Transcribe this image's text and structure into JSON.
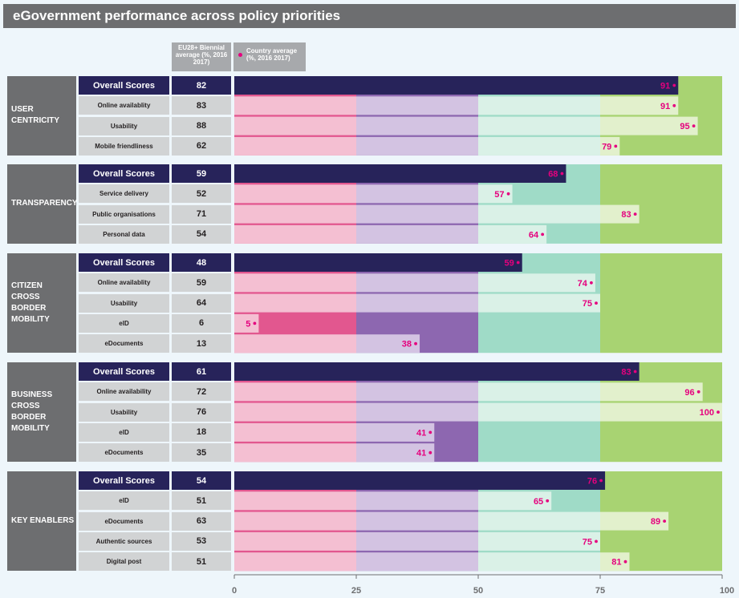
{
  "title": "eGovernment performance across policy priorities",
  "header": {
    "eu_label": "EU28+ Biennial average (%, 2016 2017)",
    "country_label": "Country average (%, 2016 2017)"
  },
  "colors": {
    "band_0_25": "#e2578f",
    "band_25_50": "#8d67b0",
    "band_50_75": "#9fdbc7",
    "band_75_100": "#a8d372",
    "overall_bar": "#27235a",
    "value_text": "#e5007e"
  },
  "chart_data": {
    "type": "bar",
    "orientation": "horizontal",
    "xlim": [
      0,
      100
    ],
    "x_ticks": [
      "0",
      "25",
      "50",
      "75",
      "100"
    ],
    "bands": [
      0,
      25,
      50,
      75,
      100
    ],
    "groups": [
      {
        "name": "USER\nCENTRICITY",
        "rows": [
          {
            "label": "Overall Scores",
            "eu": 82,
            "country": 91,
            "overall": true
          },
          {
            "label": "Online availablity",
            "eu": 83,
            "country": 91
          },
          {
            "label": "Usability",
            "eu": 88,
            "country": 95
          },
          {
            "label": "Mobile friendliness",
            "eu": 62,
            "country": 79
          }
        ]
      },
      {
        "name": "TRANSPARENCY",
        "rows": [
          {
            "label": "Overall Scores",
            "eu": 59,
            "country": 68,
            "overall": true
          },
          {
            "label": "Service delivery",
            "eu": 52,
            "country": 57
          },
          {
            "label": "Public organisations",
            "eu": 71,
            "country": 83
          },
          {
            "label": "Personal data",
            "eu": 54,
            "country": 64
          }
        ]
      },
      {
        "name": "CITIZEN\nCROSS\nBORDER\nMOBILITY",
        "rows": [
          {
            "label": "Overall Scores",
            "eu": 48,
            "country": 59,
            "overall": true
          },
          {
            "label": "Online availablity",
            "eu": 59,
            "country": 74
          },
          {
            "label": "Usability",
            "eu": 64,
            "country": 75
          },
          {
            "label": "eID",
            "eu": 6,
            "country": 5
          },
          {
            "label": "eDocuments",
            "eu": 13,
            "country": 38
          }
        ]
      },
      {
        "name": "BUSINESS\nCROSS\nBORDER\nMOBILITY",
        "rows": [
          {
            "label": "Overall Scores",
            "eu": 61,
            "country": 83,
            "overall": true
          },
          {
            "label": "Online availability",
            "eu": 72,
            "country": 96
          },
          {
            "label": "Usability",
            "eu": 76,
            "country": 100
          },
          {
            "label": "eID",
            "eu": 18,
            "country": 41
          },
          {
            "label": "eDocuments",
            "eu": 35,
            "country": 41
          }
        ]
      },
      {
        "name": "KEY ENABLERS",
        "rows": [
          {
            "label": "Overall Scores",
            "eu": 54,
            "country": 76,
            "overall": true
          },
          {
            "label": "eID",
            "eu": 51,
            "country": 65
          },
          {
            "label": "eDocuments",
            "eu": 63,
            "country": 89
          },
          {
            "label": "Authentic sources",
            "eu": 53,
            "country": 75
          },
          {
            "label": "Digital post",
            "eu": 51,
            "country": 81
          }
        ]
      }
    ]
  }
}
